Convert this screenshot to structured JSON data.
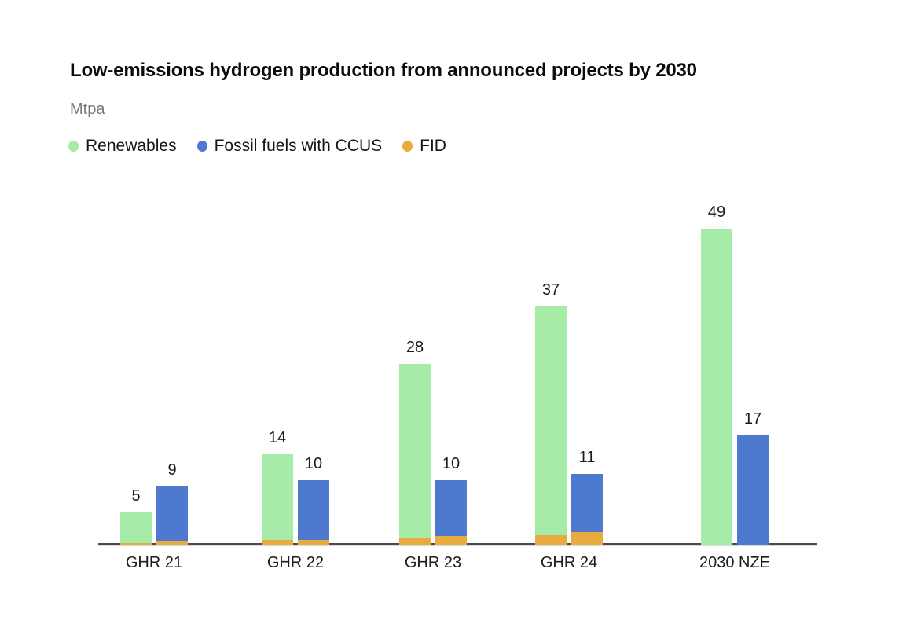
{
  "chart_data": {
    "type": "bar",
    "title": "Low-emissions hydrogen production from announced projects by 2030",
    "ylabel": "Mtpa",
    "categories": [
      "GHR 21",
      "GHR 22",
      "GHR 23",
      "GHR 24",
      "2030 NZE"
    ],
    "series": [
      {
        "name": "Renewables",
        "color": "#a7eba8",
        "values": [
          5,
          14,
          28,
          37,
          49
        ]
      },
      {
        "name": "Fossil fuels with CCUS",
        "color": "#4d7ace",
        "values": [
          9,
          10,
          10,
          11,
          17
        ]
      }
    ],
    "fid_overlay": {
      "name": "FID",
      "color": "#e8ab3f",
      "on_renewables": [
        0.3,
        0.7,
        1.1,
        1.5,
        0
      ],
      "on_fossil_ccus": [
        0.6,
        0.7,
        1.4,
        1.9,
        0
      ]
    },
    "legend": [
      "Renewables",
      "Fossil fuels with CCUS",
      "FID"
    ],
    "legend_position": "top",
    "value_labels_shown": true,
    "grid": false,
    "ylim": [
      0,
      50
    ]
  }
}
